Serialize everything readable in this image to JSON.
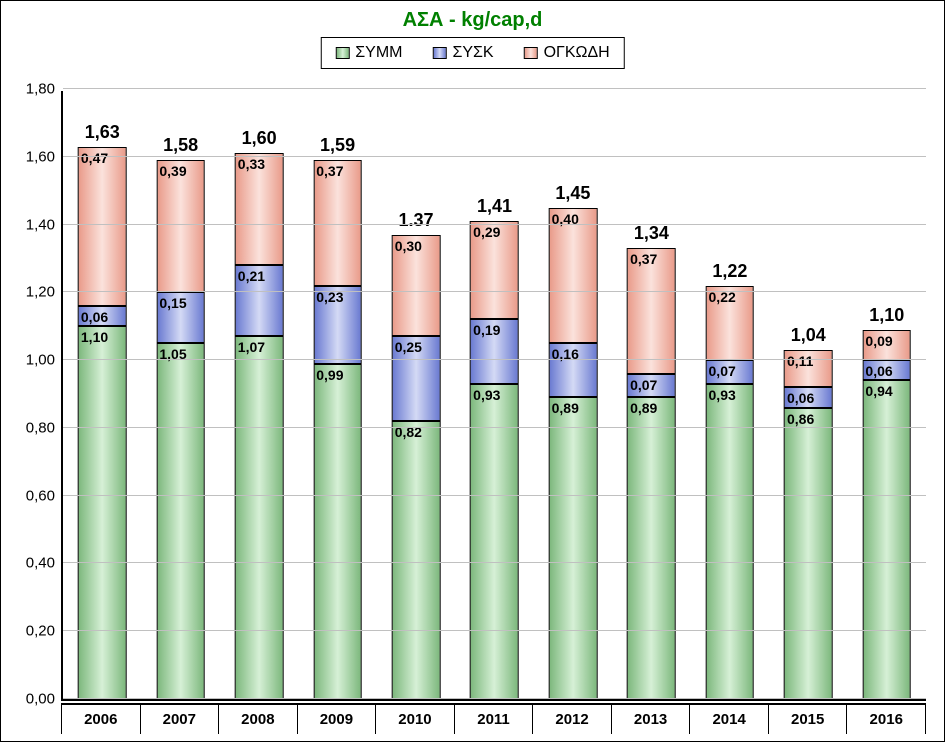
{
  "chart": {
    "type": "stacked-bar",
    "title": "ΑΣΑ - kg/cap,d",
    "title_color": "#008000",
    "title_fontsize": 20,
    "background_color": "#ffffff",
    "grid_color": "#c0c0c0",
    "axis_color": "#000000",
    "ylim": [
      0.0,
      1.8
    ],
    "ytick_step": 0.2,
    "yticks": [
      "0,00",
      "0,20",
      "0,40",
      "0,60",
      "0,80",
      "1,00",
      "1,20",
      "1,40",
      "1,60",
      "1,80"
    ],
    "bar_width_ratio": 0.62,
    "label_fontsize": 14,
    "total_fontsize": 18,
    "xlabel_fontsize": 15,
    "series": [
      {
        "key": "symm",
        "label": "ΣΥΜΜ",
        "gradient_from": "#7db87d",
        "gradient_to": "#d6f0d6",
        "border": "#000000"
      },
      {
        "key": "sysk",
        "label": "ΣΥΣΚ",
        "gradient_from": "#6a7ad1",
        "gradient_to": "#d4daf5",
        "border": "#000000"
      },
      {
        "key": "ogk",
        "label": "ΟΓΚΩΔΗ",
        "gradient_from": "#e99b8a",
        "gradient_to": "#fbe2dc",
        "border": "#000000"
      }
    ],
    "categories": [
      "2006",
      "2007",
      "2008",
      "2009",
      "2010",
      "2011",
      "2012",
      "2013",
      "2014",
      "2015",
      "2016"
    ],
    "data": [
      {
        "symm": 1.1,
        "sysk": 0.06,
        "ogk": 0.47,
        "total": 1.63,
        "symm_lbl": "1,10",
        "sysk_lbl": "0,06",
        "ogk_lbl": "0,47",
        "total_lbl": "1,63"
      },
      {
        "symm": 1.05,
        "sysk": 0.15,
        "ogk": 0.39,
        "total": 1.58,
        "symm_lbl": "1,05",
        "sysk_lbl": "0,15",
        "ogk_lbl": "0,39",
        "total_lbl": "1,58"
      },
      {
        "symm": 1.07,
        "sysk": 0.21,
        "ogk": 0.33,
        "total": 1.6,
        "symm_lbl": "1,07",
        "sysk_lbl": "0,21",
        "ogk_lbl": "0,33",
        "total_lbl": "1,60"
      },
      {
        "symm": 0.99,
        "sysk": 0.23,
        "ogk": 0.37,
        "total": 1.59,
        "symm_lbl": "0,99",
        "sysk_lbl": "0,23",
        "ogk_lbl": "0,37",
        "total_lbl": "1,59"
      },
      {
        "symm": 0.82,
        "sysk": 0.25,
        "ogk": 0.3,
        "total": 1.37,
        "symm_lbl": "0,82",
        "sysk_lbl": "0,25",
        "ogk_lbl": "0,30",
        "total_lbl": "1.37"
      },
      {
        "symm": 0.93,
        "sysk": 0.19,
        "ogk": 0.29,
        "total": 1.41,
        "symm_lbl": "0,93",
        "sysk_lbl": "0,19",
        "ogk_lbl": "0,29",
        "total_lbl": "1,41"
      },
      {
        "symm": 0.89,
        "sysk": 0.16,
        "ogk": 0.4,
        "total": 1.45,
        "symm_lbl": "0,89",
        "sysk_lbl": "0,16",
        "ogk_lbl": "0,40",
        "total_lbl": "1,45"
      },
      {
        "symm": 0.89,
        "sysk": 0.07,
        "ogk": 0.37,
        "total": 1.34,
        "symm_lbl": "0,89",
        "sysk_lbl": "0,07",
        "ogk_lbl": "0,37",
        "total_lbl": "1,34"
      },
      {
        "symm": 0.93,
        "sysk": 0.07,
        "ogk": 0.22,
        "total": 1.22,
        "symm_lbl": "0,93",
        "sysk_lbl": "0,07",
        "ogk_lbl": "0,22",
        "total_lbl": "1,22"
      },
      {
        "symm": 0.86,
        "sysk": 0.06,
        "ogk": 0.11,
        "total": 1.04,
        "symm_lbl": "0,86",
        "sysk_lbl": "0,06",
        "ogk_lbl": "0,11",
        "total_lbl": "1,04"
      },
      {
        "symm": 0.94,
        "sysk": 0.06,
        "ogk": 0.09,
        "total": 1.1,
        "symm_lbl": "0,94",
        "sysk_lbl": "0,06",
        "ogk_lbl": "0,09",
        "total_lbl": "1,10"
      }
    ]
  }
}
